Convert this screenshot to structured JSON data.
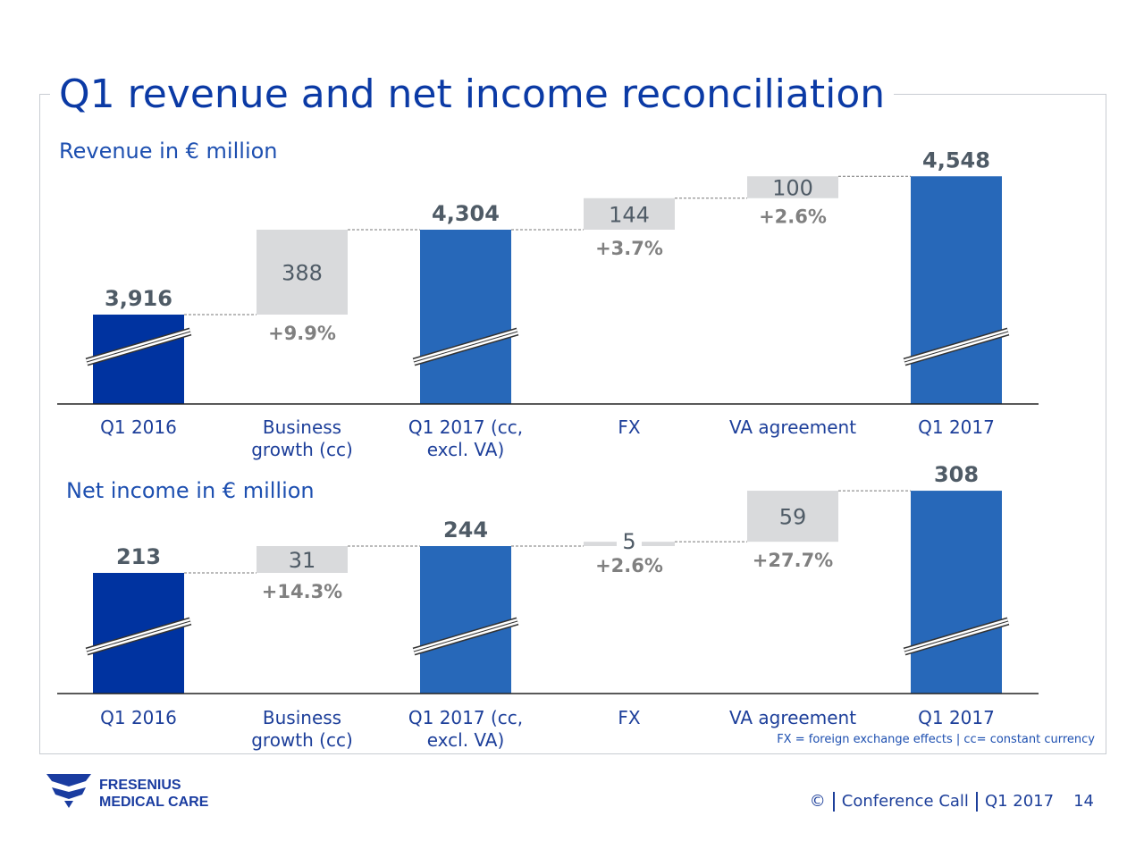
{
  "title": "Q1 revenue and net income reconciliation",
  "colors": {
    "start": "#0033a0",
    "total": "#2768b9",
    "delta": "#d9dadc",
    "value_text": "#4f5b66",
    "pct_text": "#808080",
    "title": "#0b3aa5"
  },
  "chart_data": [
    {
      "type": "waterfall",
      "title": "Revenue in € million",
      "categories": [
        "Q1 2016",
        "Business growth (cc)",
        "Q1 2017 (cc, excl. VA)",
        "FX",
        "VA agreement",
        "Q1 2017"
      ],
      "category_lines": [
        [
          "Q1 2016"
        ],
        [
          "Business",
          "growth (cc)"
        ],
        [
          "Q1 2017 (cc,",
          "excl. VA)"
        ],
        [
          "FX"
        ],
        [
          "VA agreement"
        ],
        [
          "Q1 2017"
        ]
      ],
      "kinds": [
        "start",
        "delta",
        "total",
        "delta",
        "delta",
        "total"
      ],
      "values": [
        3916,
        388,
        4304,
        144,
        100,
        4548
      ],
      "labels": [
        "3,916",
        "388",
        "4,304",
        "144",
        "100",
        "4,548"
      ],
      "growth": [
        "",
        "+9.9%",
        "",
        "+3.7%",
        "+2.6%",
        ""
      ],
      "axis_break": true
    },
    {
      "type": "waterfall",
      "title": "Net income in € million",
      "categories": [
        "Q1 2016",
        "Business growth (cc)",
        "Q1 2017 (cc, excl. VA)",
        "FX",
        "VA agreement",
        "Q1 2017"
      ],
      "category_lines": [
        [
          "Q1 2016"
        ],
        [
          "Business",
          "growth (cc)"
        ],
        [
          "Q1 2017 (cc,",
          "excl. VA)"
        ],
        [
          "FX"
        ],
        [
          "VA agreement"
        ],
        [
          "Q1 2017"
        ]
      ],
      "kinds": [
        "start",
        "delta",
        "total",
        "delta",
        "delta",
        "total"
      ],
      "values": [
        213,
        31,
        244,
        5,
        59,
        308
      ],
      "labels": [
        "213",
        "31",
        "244",
        "5",
        "59",
        "308"
      ],
      "growth": [
        "",
        "+14.3%",
        "",
        "+2.6%",
        "+27.7%",
        ""
      ],
      "axis_break": true
    }
  ],
  "fx_note": "FX = foreign exchange effects | cc= constant currency",
  "logo": {
    "line1": "FRESENIUS",
    "line2": "MEDICAL CARE"
  },
  "footer": {
    "copyright": "©",
    "event": "Conference Call",
    "period": "Q1 2017",
    "page": "14"
  }
}
